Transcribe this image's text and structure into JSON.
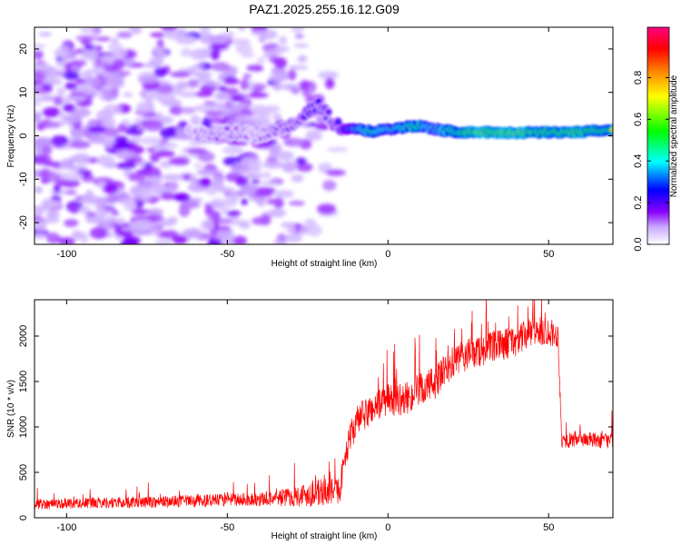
{
  "chart_data": [
    {
      "type": "heatmap",
      "title": "PAZ1.2025.255.16.12.G09",
      "xlabel": "Height of straight line (km)",
      "ylabel": "Frequency (Hz)",
      "xlim": [
        -110,
        70
      ],
      "ylim": [
        -25,
        25
      ],
      "xticks": [
        -100,
        -50,
        0,
        50
      ],
      "xtick_labels": [
        "-100",
        "-50",
        "0",
        "50"
      ],
      "yticks": [
        -20,
        -10,
        0,
        10,
        20
      ],
      "ytick_labels": [
        "-20",
        "-10",
        "0",
        "10",
        "20"
      ],
      "colorbar": {
        "label": "Normalized spectral amplitude",
        "range": [
          0,
          1
        ],
        "ticks": [
          0.0,
          0.2,
          0.4,
          0.6,
          0.8
        ],
        "tick_labels": [
          "0.0",
          "0.2",
          "0.4",
          "0.6",
          "0.8"
        ],
        "colors": [
          "#ffffff",
          "#8a00ff",
          "#0000ff",
          "#00ffff",
          "#00ff00",
          "#ffff00",
          "#ff8000",
          "#ff0000",
          "#ff0080"
        ]
      },
      "noise_region_km": [
        -110,
        -15
      ],
      "ridge": {
        "description": "frequency of peak spectral energy vs height",
        "x": [
          -62,
          -55,
          -48,
          -42,
          -36,
          -30,
          -26,
          -22,
          -18,
          -15,
          -10,
          -5,
          0,
          5,
          10,
          15,
          20,
          25,
          30,
          40,
          50,
          60,
          70
        ],
        "freq": [
          0.5,
          0.3,
          0.8,
          0.0,
          1.0,
          3.0,
          5.0,
          7.0,
          4.0,
          1.5,
          1.8,
          1.0,
          1.5,
          2.0,
          2.2,
          1.5,
          1.0,
          0.8,
          0.8,
          0.7,
          0.8,
          0.9,
          1.5
        ],
        "amplitude": [
          0.12,
          0.15,
          0.15,
          0.12,
          0.15,
          0.2,
          0.25,
          0.25,
          0.2,
          0.3,
          0.6,
          0.75,
          0.6,
          0.7,
          0.8,
          0.55,
          0.8,
          0.9,
          0.95,
          0.95,
          0.85,
          0.9,
          0.75
        ]
      }
    },
    {
      "type": "line",
      "xlabel": "Height of straight line (km)",
      "ylabel": "SNR (10 * v/v)",
      "xlim": [
        -110,
        70
      ],
      "ylim": [
        0,
        2400
      ],
      "xticks": [
        -100,
        -50,
        0,
        50
      ],
      "xtick_labels": [
        "-100",
        "-50",
        "0",
        "50"
      ],
      "yticks": [
        0,
        500,
        1000,
        1500,
        2000
      ],
      "ytick_labels": [
        "0",
        "500",
        "1000",
        "1500",
        "2000"
      ],
      "color": "#ff0000",
      "series": [
        {
          "name": "SNR",
          "x": [
            -110,
            -100,
            -90,
            -80,
            -70,
            -60,
            -50,
            -40,
            -30,
            -25,
            -20,
            -15,
            -13,
            -10,
            -5,
            0,
            5,
            10,
            15,
            20,
            25,
            30,
            35,
            40,
            45,
            50,
            53,
            54,
            56,
            60,
            65,
            70
          ],
          "mean": [
            150,
            160,
            165,
            170,
            175,
            185,
            195,
            205,
            230,
            260,
            280,
            300,
            750,
            1050,
            1200,
            1300,
            1300,
            1400,
            1500,
            1700,
            1800,
            1850,
            1900,
            1950,
            2050,
            2050,
            2000,
            850,
            850,
            870,
            850,
            850
          ],
          "noise": [
            80,
            80,
            85,
            90,
            90,
            95,
            100,
            110,
            150,
            200,
            220,
            200,
            220,
            250,
            250,
            250,
            250,
            280,
            280,
            250,
            250,
            250,
            250,
            250,
            230,
            220,
            200,
            120,
            120,
            120,
            120,
            120
          ]
        }
      ]
    }
  ]
}
